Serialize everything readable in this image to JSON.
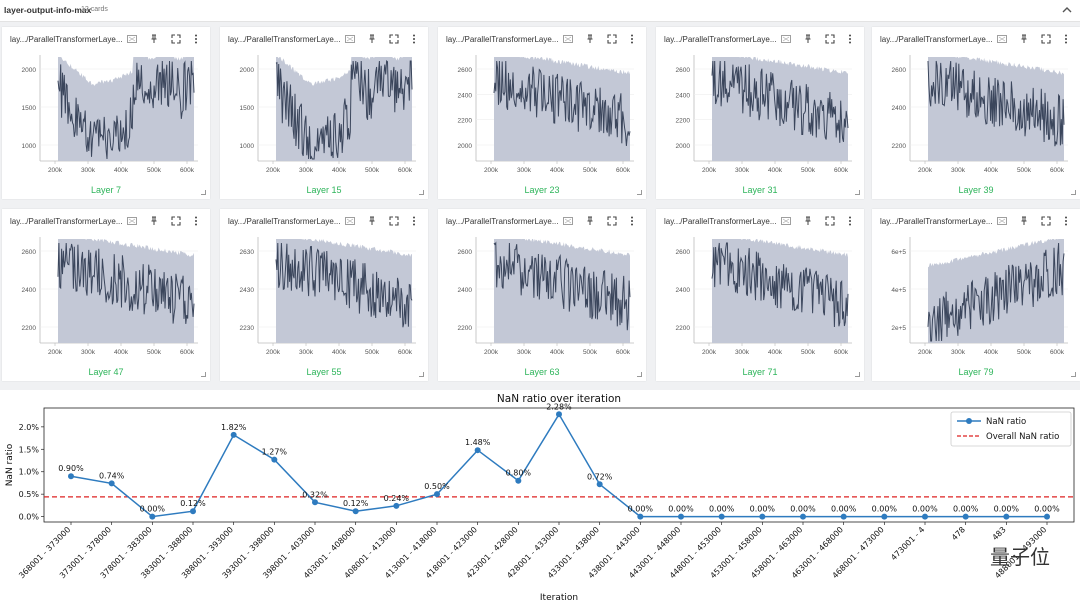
{
  "section": {
    "title": "layer-output-info-max",
    "count": "12 cards"
  },
  "card_title": "lay.../ParallelTransformerLaye...",
  "x_ticks": [
    "200k",
    "300k",
    "400k",
    "500k",
    "600k"
  ],
  "cards": [
    {
      "label": "Layer 7",
      "yticks": [
        "2000",
        "1500",
        "1000"
      ],
      "shape": "valley"
    },
    {
      "label": "Layer 15",
      "yticks": [
        "2000",
        "1500",
        "1000"
      ],
      "shape": "valley"
    },
    {
      "label": "Layer 23",
      "yticks": [
        "2600",
        "2400",
        "2200",
        "2000"
      ],
      "shape": "decay"
    },
    {
      "label": "Layer 31",
      "yticks": [
        "2600",
        "2400",
        "2200",
        "2000"
      ],
      "shape": "decay"
    },
    {
      "label": "Layer 39",
      "yticks": [
        "2600",
        "2400",
        "2200"
      ],
      "shape": "decay"
    },
    {
      "label": "Layer 47",
      "yticks": [
        "2600",
        "2400",
        "2200"
      ],
      "shape": "decay"
    },
    {
      "label": "Layer 55",
      "yticks": [
        "2630",
        "2430",
        "2230"
      ],
      "shape": "decay"
    },
    {
      "label": "Layer 63",
      "yticks": [
        "2600",
        "2400",
        "2200"
      ],
      "shape": "decay"
    },
    {
      "label": "Layer 71",
      "yticks": [
        "2600",
        "2400",
        "2200"
      ],
      "shape": "decay"
    },
    {
      "label": "Layer 79",
      "yticks": [
        "6e+5",
        "4e+5",
        "2e+5"
      ],
      "shape": "rise"
    }
  ],
  "colors": {
    "dark_line": "#3b465c",
    "light_band": "#c3c8d6",
    "accent_green": "#2db45a",
    "series": "#2e7bbf",
    "overall": "#dd2222"
  },
  "chart_data": {
    "type": "line",
    "title": "NaN ratio over iteration",
    "xlabel": "Iteration",
    "ylabel": "NaN ratio",
    "categories": [
      "368001 - 373000",
      "373001 - 378000",
      "378001 - 383000",
      "383001 - 388000",
      "388001 - 393000",
      "393001 - 398000",
      "398001 - 403000",
      "403001 - 408000",
      "408001 - 413000",
      "413001 - 418000",
      "418001 - 423000",
      "423001 - 428000",
      "428001 - 433000",
      "433001 - 438000",
      "438001 - 443000",
      "443001 - 448000",
      "448001 - 453000",
      "453001 - 458000",
      "458001 - 463000",
      "463001 - 468000",
      "468001 - 473000",
      "473001 - 478000",
      "478001 - 483000",
      "483001 - 488000",
      "488001 - 493000"
    ],
    "tick_labels": [
      "368001 - 373000",
      "373001 - 378000",
      "378001 - 383000",
      "383001 - 388000",
      "388001 - 393000",
      "393001 - 398000",
      "398001 - 403000",
      "403001 - 408000",
      "408001 - 413000",
      "413001 - 418000",
      "418001 - 423000",
      "423001 - 428000",
      "428001 - 433000",
      "433001 - 438000",
      "438001 - 443000",
      "443001 - 448000",
      "448001 - 453000",
      "453001 - 458000",
      "458001 - 463000",
      "463001 - 468000",
      "468001 - 473000",
      "473001 - 4",
      "478",
      "483",
      "488001 - 493000"
    ],
    "series": [
      {
        "name": "NaN ratio",
        "values": [
          0.9,
          0.74,
          0.0,
          0.12,
          1.82,
          1.27,
          0.32,
          0.12,
          0.24,
          0.5,
          1.48,
          0.8,
          2.28,
          0.72,
          0.0,
          0.0,
          0.0,
          0.0,
          0.0,
          0.0,
          0.0,
          0.0,
          0.0,
          0.0,
          0.0
        ]
      }
    ],
    "data_labels": [
      "0.90%",
      "0.74%",
      "0.00%",
      "0.12%",
      "1.82%",
      "1.27%",
      "0.32%",
      "0.12%",
      "0.24%",
      "0.50%",
      "1.48%",
      "0.80%",
      "2.28%",
      "0.72%",
      "0.00%",
      "0.00%",
      "0.00%",
      "0.00%",
      "0.00%",
      "0.00%",
      "0.00%",
      "0.00%",
      "0.00%",
      "0.00%",
      "0.00%"
    ],
    "overall_name": "Overall NaN ratio",
    "overall": 0.44,
    "ylim": [
      -0.12,
      2.42
    ],
    "yticks": [
      0.0,
      0.5,
      1.0,
      1.5,
      2.0
    ],
    "ytick_labels": [
      "0.0%",
      "0.5%",
      "1.0%",
      "1.5%",
      "2.0%"
    ],
    "legend": "upper-right"
  },
  "watermark": "量子位"
}
